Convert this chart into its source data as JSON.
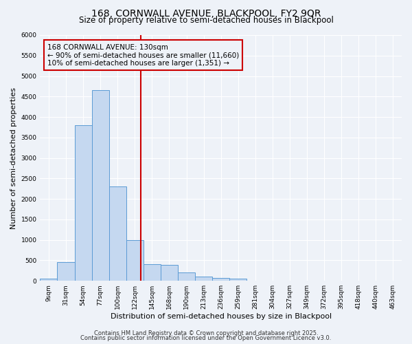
{
  "title": "168, CORNWALL AVENUE, BLACKPOOL, FY2 9QR",
  "subtitle": "Size of property relative to semi-detached houses in Blackpool",
  "xlabel": "Distribution of semi-detached houses by size in Blackpool",
  "ylabel": "Number of semi-detached properties",
  "categories": [
    "9sqm",
    "31sqm",
    "54sqm",
    "77sqm",
    "100sqm",
    "122sqm",
    "145sqm",
    "168sqm",
    "190sqm",
    "213sqm",
    "236sqm",
    "259sqm",
    "281sqm",
    "304sqm",
    "327sqm",
    "349sqm",
    "372sqm",
    "395sqm",
    "418sqm",
    "440sqm",
    "463sqm"
  ],
  "values": [
    50,
    450,
    3800,
    4650,
    2300,
    1000,
    400,
    390,
    200,
    100,
    75,
    50,
    0,
    0,
    0,
    0,
    0,
    0,
    0,
    0,
    0
  ],
  "bar_color": "#c5d8f0",
  "bar_edge_color": "#5b9bd5",
  "ylim": [
    0,
    6000
  ],
  "yticks": [
    0,
    500,
    1000,
    1500,
    2000,
    2500,
    3000,
    3500,
    4000,
    4500,
    5000,
    5500,
    6000
  ],
  "vline_color": "#cc0000",
  "annotation_title": "168 CORNWALL AVENUE: 130sqm",
  "annotation_line1": "← 90% of semi-detached houses are smaller (11,660)",
  "annotation_line2": "10% of semi-detached houses are larger (1,351) →",
  "annotation_box_color": "#cc0000",
  "footer1": "Contains HM Land Registry data © Crown copyright and database right 2025.",
  "footer2": "Contains public sector information licensed under the Open Government Licence v3.0.",
  "background_color": "#eef2f8",
  "grid_color": "#ffffff",
  "title_fontsize": 10,
  "subtitle_fontsize": 8.5,
  "tick_fontsize": 6.5,
  "axis_label_fontsize": 8,
  "footer_fontsize": 6,
  "annotation_fontsize": 7.5
}
